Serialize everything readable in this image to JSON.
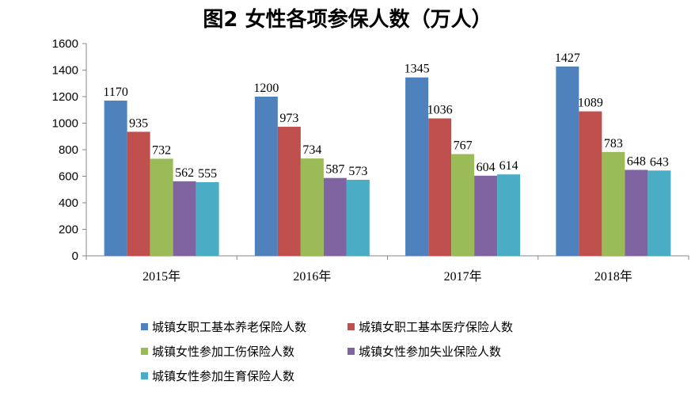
{
  "chart_data": {
    "type": "bar",
    "title": "图2  女性各项参保人数（万人）",
    "categories": [
      "2015年",
      "2016年",
      "2017年",
      "2018年"
    ],
    "series": [
      {
        "name": "城镇女职工基本养老保险人数",
        "color": "#4F81BD",
        "values": [
          1170,
          1200,
          1345,
          1427
        ]
      },
      {
        "name": "城镇女职工基本医疗保险人数",
        "color": "#C0504D",
        "values": [
          935,
          973,
          1036,
          1089
        ]
      },
      {
        "name": "城镇女性参加工伤保险人数",
        "color": "#9BBB59",
        "values": [
          732,
          734,
          767,
          783
        ]
      },
      {
        "name": "城镇女性参加失业保险人数",
        "color": "#8064A2",
        "values": [
          562,
          587,
          604,
          648
        ]
      },
      {
        "name": "城镇女性参加生育保险人数",
        "color": "#4BACC6",
        "values": [
          555,
          573,
          614,
          643
        ]
      }
    ],
    "ylim": [
      0,
      1600
    ],
    "yticks": [
      0,
      200,
      400,
      600,
      800,
      1000,
      1200,
      1400,
      1600
    ],
    "grid": false,
    "legend_position": "bottom"
  }
}
